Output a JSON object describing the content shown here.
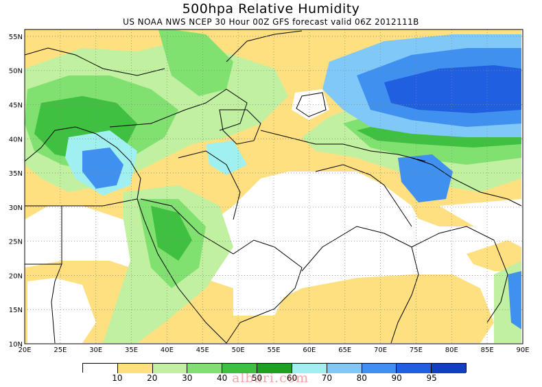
{
  "title": "500hpa Relative Humidity",
  "subtitle": "US NOAA NWS NCEP 30 Hour 00Z GFS forecast valid 06Z 2012111B",
  "map": {
    "lon_range": [
      20,
      90
    ],
    "lat_range": [
      10,
      56
    ],
    "x_ticks": [
      "20E",
      "25E",
      "30E",
      "35E",
      "40E",
      "45E",
      "50E",
      "55E",
      "60E",
      "65E",
      "70E",
      "75E",
      "80E",
      "85E",
      "90E"
    ],
    "y_ticks": [
      "55N",
      "50N",
      "45N",
      "40N",
      "35N",
      "30N",
      "25N",
      "20N",
      "15N",
      "10N"
    ]
  },
  "legend": {
    "colors": [
      "#ffffff",
      "#ffe080",
      "#c0f0a0",
      "#80e070",
      "#40c040",
      "#20a020",
      "#a0f0f0",
      "#80c8f8",
      "#4090f0",
      "#2060e0",
      "#1040c0"
    ],
    "labels": [
      "10",
      "20",
      "30",
      "40",
      "50",
      "60",
      "70",
      "80",
      "90",
      "95"
    ]
  },
  "watermark": "albari.com"
}
